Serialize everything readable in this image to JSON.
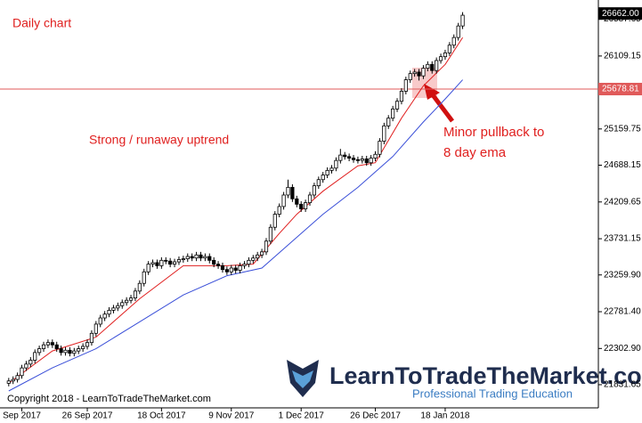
{
  "chart_data": {
    "type": "candlestick",
    "title": "Daily chart",
    "annotations": [
      "Strong / runaway uptrend",
      "Minor pullback to",
      "8 day ema"
    ],
    "copyright": "Copyright 2018 - LearnToTradeTheMarket.com",
    "logo": {
      "name": "LearnToTradeTheMarket.com",
      "tagline": "Professional Trading Education"
    },
    "xlim": [
      -2,
      135.1
    ],
    "ylim": [
      21530,
      26780
    ],
    "xticks": [
      {
        "value": 3,
        "label": "Sep 2017"
      },
      {
        "value": 18,
        "label": "26 Sep 2017"
      },
      {
        "value": 35,
        "label": "18 Oct 2017"
      },
      {
        "value": 51,
        "label": "9 Nov 2017"
      },
      {
        "value": 67,
        "label": "1 Dec 2017"
      },
      {
        "value": 84,
        "label": "26 Dec 2017"
      },
      {
        "value": 100,
        "label": "18 Jan 2018"
      }
    ],
    "yticks": [
      26587.65,
      26109.15,
      25159.75,
      24688.15,
      24209.65,
      23731.15,
      {
        "value": 23259.9,
        "label": "23259.90"
      },
      {
        "value": 22781.4,
        "label": "22781.40"
      },
      {
        "value": 22302.9,
        "label": "22302.90"
      },
      21831.65
    ],
    "hline": {
      "value": 25678.81,
      "color": "#e05a5a"
    },
    "last_price": {
      "value": 26662,
      "label": "26662.00"
    },
    "candles": [
      [
        21850,
        21920,
        21810,
        21880
      ],
      [
        21880,
        21940,
        21840,
        21900
      ],
      [
        21900,
        21990,
        21860,
        21950
      ],
      [
        21950,
        22090,
        21910,
        22050
      ],
      [
        22050,
        22140,
        22010,
        22100
      ],
      [
        22100,
        22190,
        22060,
        22150
      ],
      [
        22150,
        22290,
        22110,
        22250
      ],
      [
        22250,
        22340,
        22210,
        22300
      ],
      [
        22300,
        22390,
        22260,
        22350
      ],
      [
        22350,
        22420,
        22310,
        22380
      ],
      [
        22380,
        22420,
        22310,
        22350
      ],
      [
        22350,
        22390,
        22260,
        22300
      ],
      [
        22300,
        22340,
        22210,
        22250
      ],
      [
        22250,
        22320,
        22210,
        22280
      ],
      [
        22280,
        22320,
        22200,
        22240
      ],
      [
        22240,
        22310,
        22200,
        22270
      ],
      [
        22270,
        22340,
        22230,
        22300
      ],
      [
        22300,
        22370,
        22260,
        22330
      ],
      [
        22330,
        22420,
        22290,
        22380
      ],
      [
        22380,
        22540,
        22340,
        22500
      ],
      [
        22500,
        22660,
        22460,
        22620
      ],
      [
        22620,
        22740,
        22580,
        22700
      ],
      [
        22700,
        22790,
        22660,
        22750
      ],
      [
        22750,
        22840,
        22710,
        22800
      ],
      [
        22800,
        22870,
        22760,
        22830
      ],
      [
        22830,
        22900,
        22790,
        22860
      ],
      [
        22860,
        22940,
        22820,
        22900
      ],
      [
        22900,
        22970,
        22860,
        22930
      ],
      [
        22930,
        23000,
        22890,
        22960
      ],
      [
        22960,
        23090,
        22920,
        23050
      ],
      [
        23050,
        23190,
        23010,
        23150
      ],
      [
        23150,
        23340,
        23110,
        23300
      ],
      [
        23300,
        23440,
        23260,
        23400
      ],
      [
        23400,
        23460,
        23360,
        23420
      ],
      [
        23420,
        23460,
        23340,
        23380
      ],
      [
        23380,
        23490,
        23340,
        23450
      ],
      [
        23450,
        23490,
        23400,
        23440
      ],
      [
        23440,
        23480,
        23360,
        23400
      ],
      [
        23400,
        23470,
        23360,
        23430
      ],
      [
        23430,
        23500,
        23390,
        23460
      ],
      [
        23460,
        23510,
        23420,
        23470
      ],
      [
        23470,
        23540,
        23430,
        23500
      ],
      [
        23500,
        23540,
        23440,
        23480
      ],
      [
        23480,
        23560,
        23440,
        23520
      ],
      [
        23520,
        23560,
        23440,
        23480
      ],
      [
        23480,
        23540,
        23440,
        23500
      ],
      [
        23500,
        23540,
        23410,
        23450
      ],
      [
        23450,
        23490,
        23360,
        23400
      ],
      [
        23400,
        23440,
        23340,
        23380
      ],
      [
        23380,
        23420,
        23290,
        23330
      ],
      [
        23330,
        23370,
        23260,
        23300
      ],
      [
        23300,
        23390,
        23260,
        23350
      ],
      [
        23350,
        23390,
        23280,
        23320
      ],
      [
        23320,
        23420,
        23280,
        23380
      ],
      [
        23380,
        23440,
        23340,
        23400
      ],
      [
        23400,
        23490,
        23360,
        23450
      ],
      [
        23450,
        23520,
        23410,
        23480
      ],
      [
        23480,
        23560,
        23440,
        23520
      ],
      [
        23520,
        23600,
        23480,
        23560
      ],
      [
        23560,
        23740,
        23520,
        23700
      ],
      [
        23700,
        23920,
        23660,
        23880
      ],
      [
        23880,
        24090,
        23840,
        24050
      ],
      [
        24050,
        24190,
        24010,
        24150
      ],
      [
        24150,
        24340,
        24110,
        24300
      ],
      [
        24300,
        24500,
        24260,
        24400
      ],
      [
        24400,
        24440,
        24210,
        24250
      ],
      [
        24250,
        24290,
        24140,
        24180
      ],
      [
        24180,
        24220,
        24080,
        24120
      ],
      [
        24120,
        24240,
        24080,
        24200
      ],
      [
        24200,
        24340,
        24160,
        24300
      ],
      [
        24300,
        24460,
        24260,
        24420
      ],
      [
        24420,
        24540,
        24380,
        24500
      ],
      [
        24500,
        24600,
        24460,
        24560
      ],
      [
        24560,
        24660,
        24520,
        24620
      ],
      [
        24620,
        24690,
        24580,
        24650
      ],
      [
        24650,
        24790,
        24610,
        24750
      ],
      [
        24750,
        24900,
        24710,
        24820
      ],
      [
        24820,
        24860,
        24760,
        24800
      ],
      [
        24800,
        24840,
        24740,
        24780
      ],
      [
        24780,
        24820,
        24720,
        24760
      ],
      [
        24760,
        24800,
        24710,
        24750
      ],
      [
        24750,
        24810,
        24710,
        24770
      ],
      [
        24770,
        24810,
        24680,
        24720
      ],
      [
        24720,
        24820,
        24680,
        24780
      ],
      [
        24780,
        24870,
        24740,
        24830
      ],
      [
        24830,
        25040,
        24790,
        25000
      ],
      [
        25000,
        25240,
        24960,
        25200
      ],
      [
        25200,
        25340,
        25160,
        25300
      ],
      [
        25300,
        25460,
        25260,
        25420
      ],
      [
        25420,
        25560,
        25380,
        25520
      ],
      [
        25520,
        25690,
        25480,
        25650
      ],
      [
        25650,
        25840,
        25610,
        25800
      ],
      [
        25800,
        25920,
        25760,
        25880
      ],
      [
        25880,
        25940,
        25840,
        25900
      ],
      [
        25900,
        25940,
        25790,
        25850
      ],
      [
        25850,
        25990,
        25810,
        25950
      ],
      [
        25950,
        26040,
        25910,
        26000
      ],
      [
        26000,
        26040,
        25880,
        25920
      ],
      [
        25920,
        26090,
        25880,
        26050
      ],
      [
        26050,
        26140,
        26010,
        26100
      ],
      [
        26100,
        26190,
        26060,
        26150
      ],
      [
        26150,
        26290,
        26110,
        26250
      ],
      [
        26250,
        26390,
        26210,
        26350
      ],
      [
        26350,
        26540,
        26310,
        26500
      ],
      [
        26500,
        26680,
        26460,
        26640
      ]
    ],
    "lines": [
      {
        "color": "#e02020",
        "x": [
          0,
          10,
          20,
          30,
          40,
          50,
          56,
          62,
          66,
          72,
          80,
          84,
          90,
          95,
          100,
          104
        ],
        "values": [
          21850,
          22270,
          22450,
          22950,
          23380,
          23380,
          23400,
          23800,
          24050,
          24350,
          24680,
          24720,
          25300,
          25720,
          26000,
          26350
        ]
      },
      {
        "color": "#3a4fd8",
        "x": [
          0,
          10,
          20,
          30,
          40,
          50,
          58,
          64,
          72,
          80,
          88,
          95,
          100,
          104
        ],
        "values": [
          21750,
          22050,
          22300,
          22650,
          23000,
          23250,
          23350,
          23650,
          24050,
          24400,
          24800,
          25250,
          25550,
          25800
        ]
      }
    ]
  }
}
